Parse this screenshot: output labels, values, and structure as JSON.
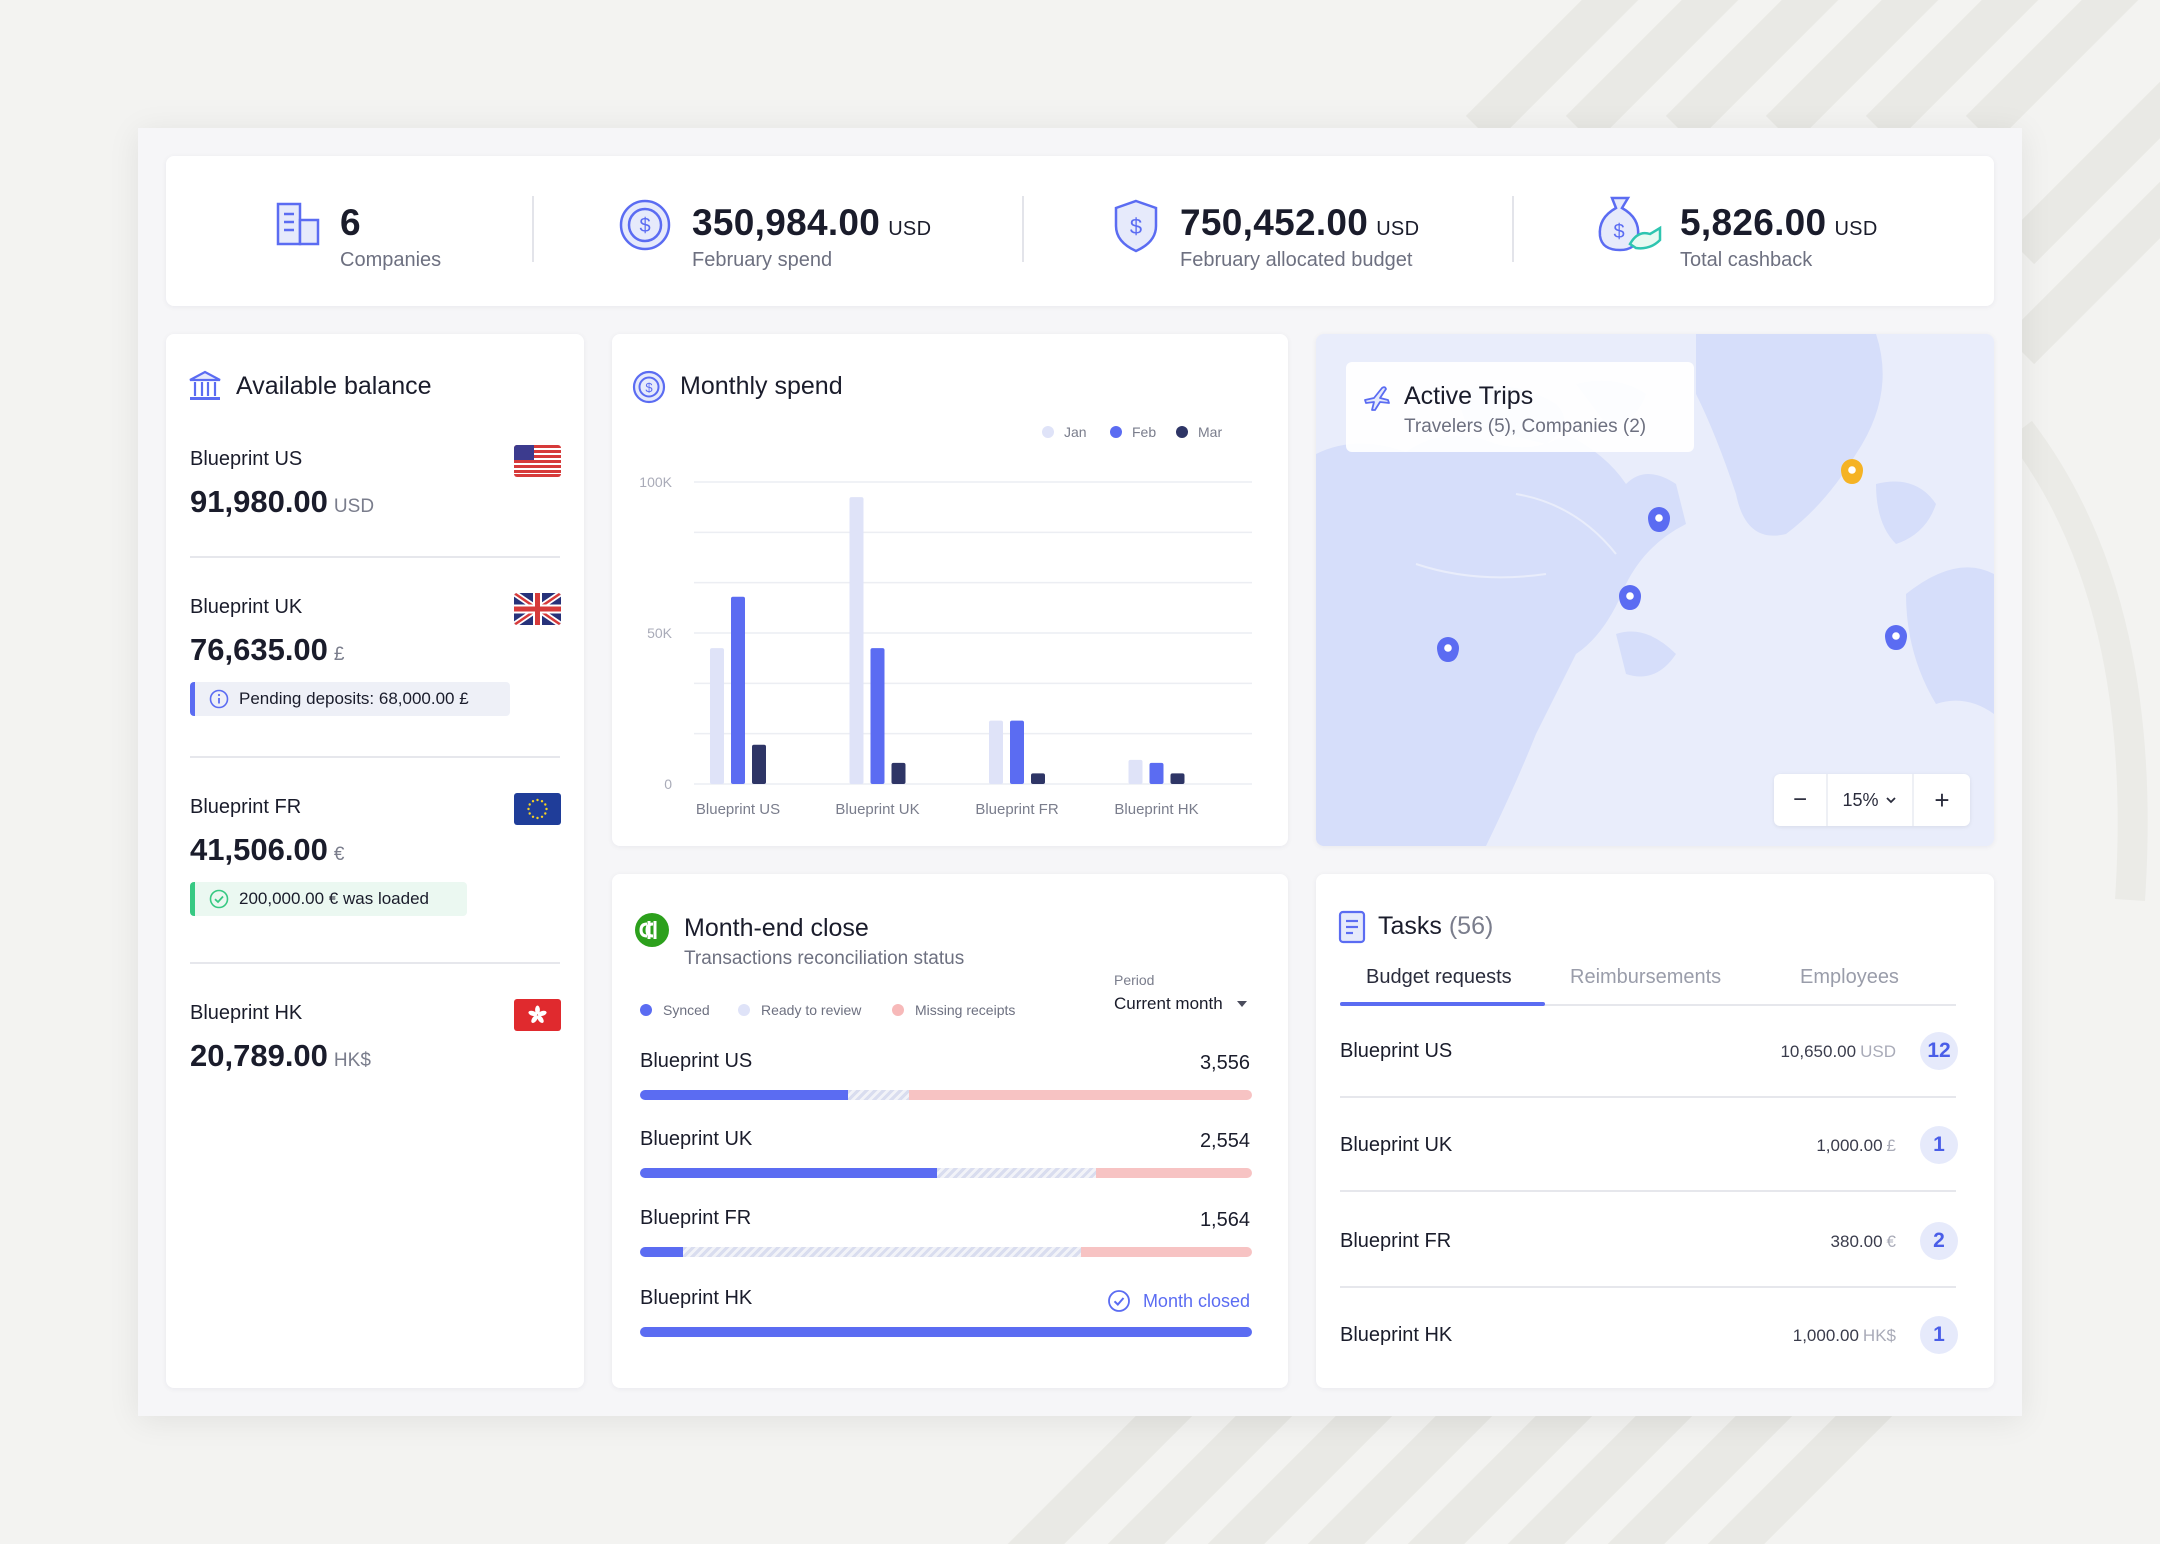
{
  "stats": [
    {
      "icon": "building-icon",
      "value": "6",
      "unit": "",
      "label": "Companies"
    },
    {
      "icon": "dollar-coin-icon",
      "value": "350,984.00",
      "unit": "USD",
      "label": "February spend"
    },
    {
      "icon": "shield-dollar-icon",
      "value": "750,452.00",
      "unit": "USD",
      "label": "February allocated budget"
    },
    {
      "icon": "money-bag-icon",
      "value": "5,826.00",
      "unit": "USD",
      "label": "Total cashback"
    }
  ],
  "balance": {
    "title": "Available balance",
    "items": [
      {
        "name": "Blueprint US",
        "value": "91,980.00",
        "unit": "USD",
        "flag": "us-flag-icon"
      },
      {
        "name": "Blueprint UK",
        "value": "76,635.00",
        "unit": "£",
        "flag": "uk-flag-icon",
        "note": "Pending deposits: 68,000.00 £",
        "note_type": "info"
      },
      {
        "name": "Blueprint FR",
        "value": "41,506.00",
        "unit": "€",
        "flag": "eu-flag-icon",
        "note": "200,000.00 € was loaded",
        "note_type": "success"
      },
      {
        "name": "Blueprint HK",
        "value": "20,789.00",
        "unit": "HK$",
        "flag": "hk-flag-icon"
      }
    ]
  },
  "monthly_spend": {
    "title": "Monthly spend"
  },
  "chart_data": {
    "type": "bar",
    "title": "Monthly spend",
    "categories": [
      "Blueprint US",
      "Blueprint UK",
      "Blueprint FR",
      "Blueprint HK"
    ],
    "series": [
      {
        "name": "Jan",
        "color": "#dfe3f8",
        "values": [
          45000,
          95000,
          21000,
          8000
        ]
      },
      {
        "name": "Feb",
        "color": "#5b6cf2",
        "values": [
          62000,
          45000,
          21000,
          7000
        ]
      },
      {
        "name": "Mar",
        "color": "#2e3566",
        "values": [
          13000,
          7000,
          3500,
          3500
        ]
      }
    ],
    "yticks": [
      "0",
      "50K",
      "100K"
    ],
    "ylim": [
      0,
      100000
    ],
    "legend": "top-right",
    "grid": true
  },
  "trips": {
    "title": "Active Trips",
    "subtitle": "Travelers (5), Companies (2)",
    "zoom_minus": "−",
    "zoom_level": "15%",
    "zoom_plus": "+"
  },
  "month_end": {
    "title": "Month-end close",
    "subtitle": "Transactions reconciliation status",
    "legend": [
      {
        "label": "Synced",
        "color": "#5b6cf2"
      },
      {
        "label": "Ready to review",
        "color": "#dfe3f8"
      },
      {
        "label": "Missing receipts",
        "color": "#f7b9b9"
      }
    ],
    "period_label": "Period",
    "period_value": "Current month",
    "rows": [
      {
        "name": "Blueprint US",
        "value": "3,556",
        "synced": 0.34,
        "review": 0.1,
        "missing": 0.56
      },
      {
        "name": "Blueprint UK",
        "value": "2,554",
        "synced": 0.485,
        "review": 0.26,
        "missing": 0.255
      },
      {
        "name": "Blueprint FR",
        "value": "1,564",
        "synced": 0.07,
        "review": 0.65,
        "missing": 0.28
      },
      {
        "name": "Blueprint HK",
        "value": "Month closed",
        "synced": 1,
        "review": 0,
        "missing": 0,
        "closed": true
      }
    ]
  },
  "tasks": {
    "title": "Tasks",
    "count": "(56)",
    "tabs": [
      "Budget requests",
      "Reimbursements",
      "Employees"
    ],
    "rows": [
      {
        "name": "Blueprint US",
        "amount": "10,650.00",
        "unit": "USD",
        "badge": "12"
      },
      {
        "name": "Blueprint UK",
        "amount": "1,000.00",
        "unit": "£",
        "badge": "1"
      },
      {
        "name": "Blueprint FR",
        "amount": "380.00",
        "unit": "€",
        "badge": "2"
      },
      {
        "name": "Blueprint HK",
        "amount": "1,000.00",
        "unit": "HK$",
        "badge": "1"
      }
    ]
  },
  "colors": {
    "accent": "#5b6cf2",
    "dark": "#2e3566",
    "success": "#37c983",
    "map_water": "#eef1fb",
    "map_land": "#d5ddfa",
    "pin_blue": "#5b6cf2",
    "pin_yellow": "#f5b324"
  }
}
